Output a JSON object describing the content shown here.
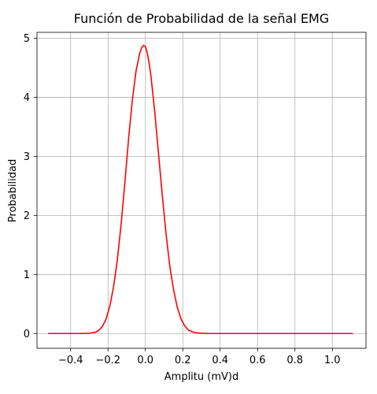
{
  "chart_data": {
    "type": "line",
    "title": "Función de Probabilidad de la señal EMG",
    "xlabel": "Amplitu (mV)d",
    "ylabel": "Probabilidad",
    "xlim": [
      -0.58,
      1.18
    ],
    "ylim": [
      -0.25,
      5.1
    ],
    "grid": true,
    "x_ticks": [
      -0.4,
      -0.2,
      0.0,
      0.2,
      0.4,
      0.6,
      0.8,
      1.0
    ],
    "x_tick_labels": [
      "−0.4",
      "−0.2",
      "0.0",
      "0.2",
      "0.4",
      "0.6",
      "0.8",
      "1.0"
    ],
    "y_ticks": [
      0,
      1,
      2,
      3,
      4,
      5
    ],
    "y_tick_labels": [
      "0",
      "1",
      "2",
      "3",
      "4",
      "5"
    ],
    "series": [
      {
        "color": "#ff0000",
        "x": [
          -0.52,
          -0.45,
          -0.4,
          -0.35,
          -0.3,
          -0.27,
          -0.25,
          -0.23,
          -0.21,
          -0.19,
          -0.17,
          -0.15,
          -0.13,
          -0.11,
          -0.09,
          -0.07,
          -0.05,
          -0.03,
          -0.02,
          -0.01,
          0.0,
          0.01,
          0.02,
          0.03,
          0.05,
          0.07,
          0.09,
          0.11,
          0.13,
          0.15,
          0.17,
          0.19,
          0.21,
          0.23,
          0.25,
          0.27,
          0.3,
          0.35,
          0.4,
          0.5,
          0.6,
          0.7,
          0.8,
          0.9,
          1.0,
          1.11
        ],
        "y": [
          0.0,
          0.0,
          0.0,
          0.0,
          0.005,
          0.02,
          0.05,
          0.12,
          0.25,
          0.47,
          0.8,
          1.25,
          1.85,
          2.55,
          3.3,
          3.95,
          4.45,
          4.75,
          4.84,
          4.88,
          4.86,
          4.75,
          4.58,
          4.35,
          3.75,
          3.05,
          2.35,
          1.7,
          1.15,
          0.75,
          0.45,
          0.25,
          0.13,
          0.06,
          0.03,
          0.012,
          0.005,
          0.0,
          0.0,
          0.0,
          0.0,
          0.0,
          0.0,
          0.0,
          0.0,
          0.0
        ]
      }
    ]
  }
}
